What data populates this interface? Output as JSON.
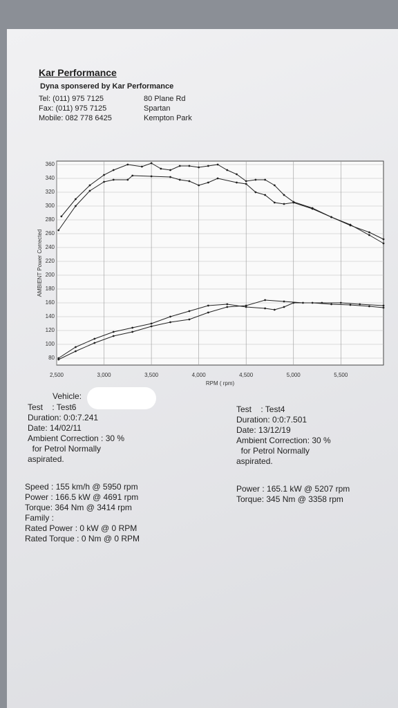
{
  "header": {
    "company": "Kar Performance",
    "subtitle": "Dyna sponsered by Kar Performance",
    "contact": [
      "Tel: (011) 975 7125",
      "Fax: (011) 975 7125",
      "Mobile: 082 778 6425"
    ],
    "address": [
      "80 Plane Rd",
      "Spartan",
      "Kempton Park"
    ]
  },
  "chart_data": {
    "type": "line",
    "y_label": "AMBIENT Power Corrected",
    "x_label": "RPM ( rpm)",
    "xlim": [
      2500,
      5950
    ],
    "ylim": [
      70,
      365
    ],
    "xticks": [
      {
        "value": 2500,
        "label": "2,500"
      },
      {
        "value": 3000,
        "label": "3,000"
      },
      {
        "value": 3500,
        "label": "3,500"
      },
      {
        "value": 4000,
        "label": "4,000"
      },
      {
        "value": 4500,
        "label": "4,500"
      },
      {
        "value": 5000,
        "label": "5,000"
      },
      {
        "value": 5500,
        "label": "5,500"
      }
    ],
    "yticks": [
      80,
      100,
      120,
      140,
      160,
      180,
      200,
      220,
      240,
      260,
      280,
      300,
      320,
      340,
      360
    ],
    "grid": true,
    "series": [
      {
        "color": "#222222",
        "x": [
          2550,
          2700,
          2850,
          3000,
          3100,
          3250,
          3400,
          3500,
          3600,
          3700,
          3800,
          3900,
          4000,
          4100,
          4200,
          4300,
          4400,
          4500,
          4600,
          4700,
          4800,
          4900,
          5000,
          5200,
          5400,
          5600,
          5800,
          5950
        ],
        "values": [
          285,
          310,
          330,
          345,
          352,
          360,
          357,
          362,
          354,
          352,
          358,
          358,
          356,
          358,
          360,
          352,
          346,
          336,
          338,
          338,
          330,
          316,
          306,
          297,
          284,
          272,
          262,
          252
        ]
      },
      {
        "color": "#222222",
        "x": [
          2520,
          2700,
          2850,
          3000,
          3100,
          3250,
          3300,
          3500,
          3700,
          3800,
          3900,
          4000,
          4100,
          4200,
          4400,
          4500,
          4600,
          4700,
          4800,
          4900,
          5000,
          5200,
          5400,
          5600,
          5800,
          5950
        ],
        "values": [
          265,
          300,
          322,
          335,
          338,
          338,
          344,
          343,
          342,
          338,
          336,
          330,
          334,
          340,
          334,
          332,
          320,
          316,
          305,
          303,
          305,
          296,
          284,
          273,
          258,
          246
        ]
      },
      {
        "color": "#222222",
        "x": [
          2520,
          2700,
          2900,
          3100,
          3300,
          3500,
          3700,
          3900,
          4100,
          4300,
          4500,
          4700,
          4900,
          5100,
          5300,
          5500,
          5700,
          5950
        ],
        "values": [
          78,
          90,
          102,
          112,
          118,
          126,
          132,
          136,
          146,
          154,
          156,
          164,
          162,
          160,
          160,
          160,
          158,
          156
        ]
      },
      {
        "color": "#222222",
        "x": [
          2520,
          2700,
          2900,
          3100,
          3300,
          3500,
          3700,
          3900,
          4100,
          4300,
          4500,
          4700,
          4800,
          4900,
          5000,
          5200,
          5400,
          5600,
          5800,
          5950
        ],
        "values": [
          80,
          96,
          108,
          118,
          124,
          130,
          140,
          148,
          156,
          158,
          154,
          152,
          150,
          154,
          160,
          160,
          158,
          157,
          155,
          153
        ]
      }
    ]
  },
  "vehicle": "Vehicle:",
  "test_left": [
    "Test    : Test6",
    "Duration: 0:0:7.241",
    "Date: 14/02/11",
    "Ambient Correction : 30 %",
    "  for Petrol Normally",
    "aspirated."
  ],
  "test_right": [
    "Test    : Test4",
    "Duration: 0:0:7.501",
    "Date: 13/12/19",
    "Ambient Correction: 30 %",
    "  for Petrol Normally",
    "aspirated."
  ],
  "results_left": [
    "Speed : 155 km/h @ 5950 rpm",
    "Power : 166.5 kW @ 4691 rpm",
    "Torque: 364 Nm @ 3414 rpm",
    "Family :",
    "Rated Power : 0 kW @ 0 RPM",
    "Rated Torque : 0 Nm @ 0 RPM"
  ],
  "results_right": [
    "Power : 165.1 kW @ 5207 rpm",
    "Torque: 345 Nm @ 3358 rpm"
  ]
}
